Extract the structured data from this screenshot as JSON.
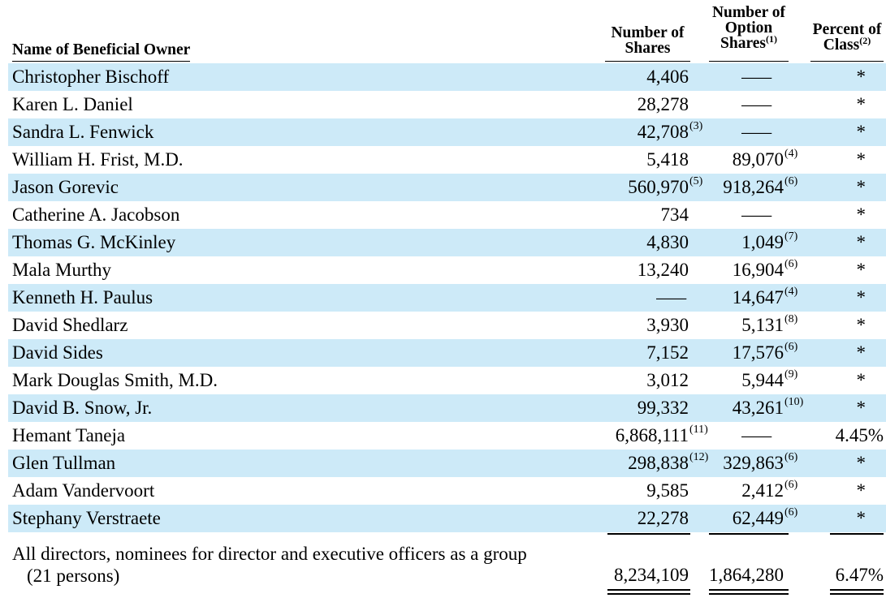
{
  "table": {
    "headers": {
      "name": {
        "lines": [
          "Name of Beneficial Owner"
        ]
      },
      "shares": {
        "lines": [
          "Number of",
          "Shares"
        ]
      },
      "options": {
        "lines": [
          "Number of",
          "Option",
          "Shares"
        ],
        "note": "(1)"
      },
      "percent": {
        "lines": [
          "Percent of",
          "Class"
        ],
        "note": "(2)"
      }
    },
    "rows": [
      {
        "name": "Christopher Bischoff",
        "shares": {
          "value": "4,406"
        },
        "options": {
          "value": "—"
        },
        "percent": {
          "value": "*"
        }
      },
      {
        "name": "Karen L. Daniel",
        "shares": {
          "value": "28,278"
        },
        "options": {
          "value": "—"
        },
        "percent": {
          "value": "*"
        }
      },
      {
        "name": "Sandra L. Fenwick",
        "shares": {
          "value": "42,708",
          "note": "(3)"
        },
        "options": {
          "value": "—"
        },
        "percent": {
          "value": "*"
        }
      },
      {
        "name": "William H. Frist, M.D.",
        "shares": {
          "value": "5,418"
        },
        "options": {
          "value": "89,070",
          "note": "(4)"
        },
        "percent": {
          "value": "*"
        }
      },
      {
        "name": "Jason Gorevic",
        "shares": {
          "value": "560,970",
          "note": "(5)"
        },
        "options": {
          "value": "918,264",
          "note": "(6)"
        },
        "percent": {
          "value": "*"
        }
      },
      {
        "name": "Catherine A. Jacobson",
        "shares": {
          "value": "734"
        },
        "options": {
          "value": "—"
        },
        "percent": {
          "value": "*"
        }
      },
      {
        "name": "Thomas G. McKinley",
        "shares": {
          "value": "4,830"
        },
        "options": {
          "value": "1,049",
          "note": "(7)"
        },
        "percent": {
          "value": "*"
        }
      },
      {
        "name": "Mala Murthy",
        "shares": {
          "value": "13,240"
        },
        "options": {
          "value": "16,904",
          "note": "(6)"
        },
        "percent": {
          "value": "*"
        }
      },
      {
        "name": "Kenneth H. Paulus",
        "shares": {
          "value": "—"
        },
        "options": {
          "value": "14,647",
          "note": "(4)"
        },
        "percent": {
          "value": "*"
        }
      },
      {
        "name": "David Shedlarz",
        "shares": {
          "value": "3,930"
        },
        "options": {
          "value": "5,131",
          "note": "(8)"
        },
        "percent": {
          "value": "*"
        }
      },
      {
        "name": "David Sides",
        "shares": {
          "value": "7,152"
        },
        "options": {
          "value": "17,576",
          "note": "(6)"
        },
        "percent": {
          "value": "*"
        }
      },
      {
        "name": "Mark Douglas Smith, M.D.",
        "shares": {
          "value": "3,012"
        },
        "options": {
          "value": "5,944",
          "note": "(9)"
        },
        "percent": {
          "value": "*"
        }
      },
      {
        "name": "David B. Snow, Jr.",
        "shares": {
          "value": "99,332"
        },
        "options": {
          "value": "43,261",
          "note": "(10)"
        },
        "percent": {
          "value": "*"
        }
      },
      {
        "name": "Hemant Taneja",
        "shares": {
          "value": "6,868,111",
          "note": "(11)"
        },
        "options": {
          "value": "—"
        },
        "percent": {
          "value": "4.45%"
        }
      },
      {
        "name": "Glen Tullman",
        "shares": {
          "value": "298,838",
          "note": "(12)"
        },
        "options": {
          "value": "329,863",
          "note": "(6)"
        },
        "percent": {
          "value": "*"
        }
      },
      {
        "name": "Adam Vandervoort",
        "shares": {
          "value": "9,585"
        },
        "options": {
          "value": "2,412",
          "note": "(6)"
        },
        "percent": {
          "value": "*"
        }
      },
      {
        "name": "Stephany Verstraete",
        "shares": {
          "value": "22,278"
        },
        "options": {
          "value": "62,449",
          "note": "(6)"
        },
        "percent": {
          "value": "*"
        }
      }
    ],
    "total": {
      "label_line1": "All directors, nominees for director and executive officers as a group",
      "label_line2": "(21 persons)",
      "shares": "8,234,109",
      "options": "1,864,280",
      "percent": "6.47%"
    }
  },
  "colors": {
    "row_shade": "#cdeaf8",
    "text": "#000000"
  }
}
